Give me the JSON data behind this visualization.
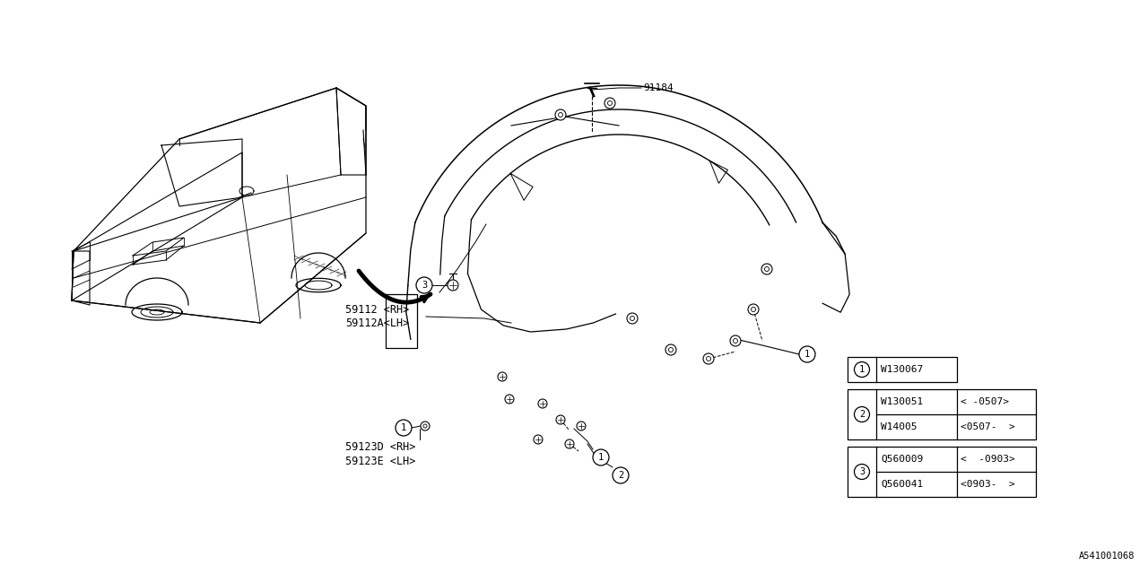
{
  "bg_color": "#ffffff",
  "diagram_id": "A541001068",
  "parts_table": {
    "item1": {
      "number": "W130067",
      "col3": ""
    },
    "item2_row1": {
      "number": "W130051",
      "col3": "< -0507>"
    },
    "item2_row2": {
      "number": "W14005",
      "col3": "<0507-  >"
    },
    "item3_row1": {
      "number": "Q560009",
      "col3": "<  -0903>"
    },
    "item3_row2": {
      "number": "Q560041",
      "col3": "<0903-  >"
    }
  },
  "label_91184": "91184",
  "label_59112": "59112 <RH>",
  "label_59112A": "59112A<LH>",
  "label_59123D": "59123D <RH>",
  "label_59123E": "59123E <LH>",
  "font_family": "monospace",
  "lc": "#000000",
  "tc": "#000000",
  "fs": 8
}
